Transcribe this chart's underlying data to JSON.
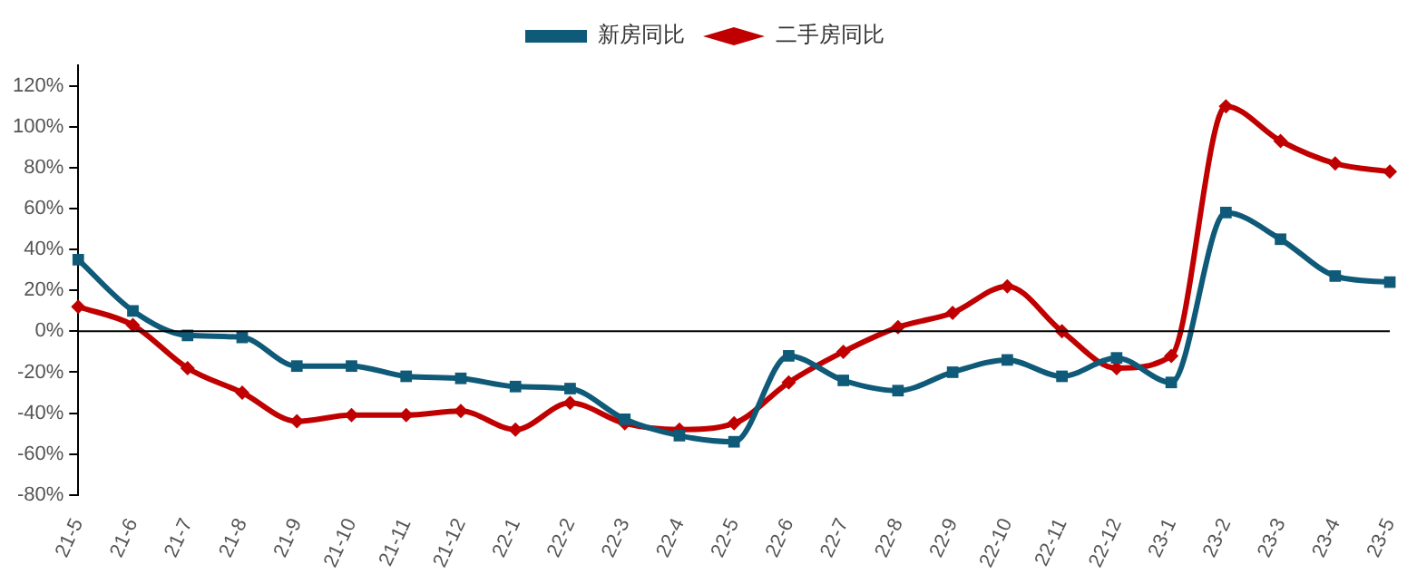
{
  "chart_data": {
    "type": "line",
    "categories": [
      "21-5",
      "21-6",
      "21-7",
      "21-8",
      "21-9",
      "21-10",
      "21-11",
      "21-12",
      "22-1",
      "22-2",
      "22-3",
      "22-4",
      "22-5",
      "22-6",
      "22-7",
      "22-8",
      "22-9",
      "22-10",
      "22-11",
      "22-12",
      "23-1",
      "23-2",
      "23-3",
      "23-4",
      "23-5"
    ],
    "series": [
      {
        "name": "二手房同比",
        "color": "#c00000",
        "marker": "diamond",
        "values": [
          12,
          3,
          -18,
          -30,
          -44,
          -41,
          -41,
          -39,
          -48,
          -35,
          -45,
          -48,
          -45,
          -25,
          -10,
          2,
          9,
          22,
          0,
          -18,
          -12,
          110,
          93,
          82,
          78
        ]
      },
      {
        "name": "新房同比",
        "color": "#0e5a78",
        "marker": "square",
        "values": [
          35,
          10,
          -2,
          -3,
          -17,
          -17,
          -22,
          -23,
          -27,
          -28,
          -43,
          -51,
          -54,
          -12,
          -24,
          -29,
          -20,
          -14,
          -22,
          -13,
          -25,
          58,
          45,
          27,
          24
        ]
      }
    ],
    "ylim": [
      -80,
      130
    ],
    "yticks": [
      {
        "value": -80,
        "label": "-80%"
      },
      {
        "value": -60,
        "label": "-60%"
      },
      {
        "value": -40,
        "label": "-40%"
      },
      {
        "value": -20,
        "label": "-20%"
      },
      {
        "value": 0,
        "label": "0%"
      },
      {
        "value": 20,
        "label": "20%"
      },
      {
        "value": 40,
        "label": "40%"
      },
      {
        "value": 60,
        "label": "60%"
      },
      {
        "value": 80,
        "label": "80%"
      },
      {
        "value": 100,
        "label": "100%"
      },
      {
        "value": 120,
        "label": "120%"
      }
    ],
    "ref_lines": [
      {
        "axis": "y",
        "value": 0,
        "color": "#000000"
      }
    ],
    "grid": false,
    "legend": "top",
    "line_style": "solid"
  }
}
